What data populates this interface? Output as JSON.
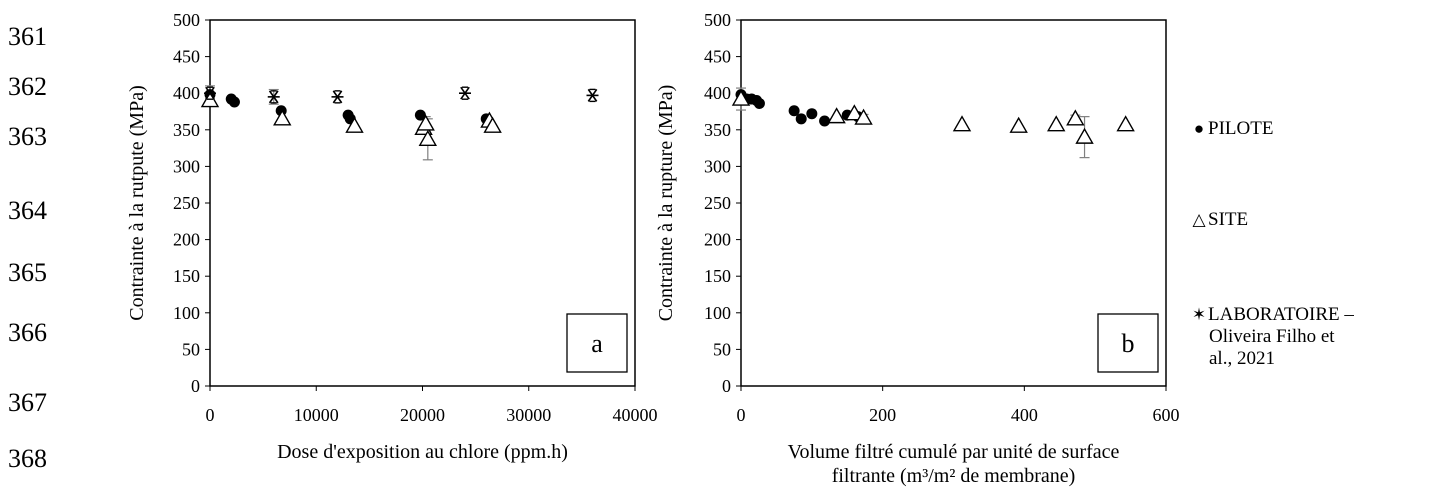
{
  "line_numbers": [
    "361",
    "362",
    "363",
    "364",
    "365",
    "366",
    "367",
    "368"
  ],
  "legend": {
    "pilote": "PILOTE",
    "site": "SITE",
    "labo_line1": "LABORATOIRE –",
    "labo_line2": "Oliveira Filho et",
    "labo_line3": "al., 2021"
  },
  "chart_data": [
    {
      "type": "scatter",
      "panel_label": "a",
      "xlabel": "Dose d'exposition au chlore (ppm.h)",
      "ylabel": "Contrainte à la rutpute (MPa)",
      "xlim": [
        0,
        40000
      ],
      "ylim": [
        0,
        500
      ],
      "xticks": [
        0,
        10000,
        20000,
        30000,
        40000
      ],
      "yticks": [
        0,
        50,
        100,
        150,
        200,
        250,
        300,
        350,
        400,
        450,
        500
      ],
      "grid": false,
      "series": [
        {
          "name": "PILOTE",
          "marker": "circle",
          "x": [
            0,
            2000,
            2300,
            6700,
            13000,
            13200,
            19800,
            26000
          ],
          "y": [
            398,
            392,
            388,
            376,
            370,
            365,
            370,
            365
          ]
        },
        {
          "name": "SITE",
          "marker": "triangle",
          "x": [
            0,
            6800,
            13600,
            20100,
            20300,
            20500,
            26300,
            26600
          ],
          "y": [
            390,
            365,
            355,
            352,
            358,
            337,
            362,
            355
          ],
          "err": [
            0,
            0,
            0,
            0,
            10,
            28,
            0,
            0
          ]
        },
        {
          "name": "LABORATOIRE – Oliveira Filho et al., 2021",
          "marker": "star",
          "x": [
            0,
            6000,
            12000,
            24000,
            36000
          ],
          "y": [
            400,
            395,
            395,
            400,
            397
          ],
          "err": [
            10,
            10,
            0,
            0,
            0
          ]
        }
      ]
    },
    {
      "type": "scatter",
      "panel_label": "b",
      "xlabel_line1": "Volume filtré cumulé par unité de surface",
      "xlabel_line2": "filtrante (m³/m² de membrane)",
      "ylabel": "Contrainte à la rupture (MPa)",
      "xlim": [
        0,
        600
      ],
      "ylim": [
        0,
        500
      ],
      "xticks": [
        0,
        200,
        400,
        600
      ],
      "yticks": [
        0,
        50,
        100,
        150,
        200,
        250,
        300,
        350,
        400,
        450,
        500
      ],
      "grid": false,
      "series": [
        {
          "name": "PILOTE",
          "marker": "circle",
          "x": [
            0,
            8,
            15,
            22,
            26,
            75,
            85,
            100,
            118,
            150,
            165
          ],
          "y": [
            398,
            392,
            392,
            390,
            386,
            376,
            365,
            372,
            362,
            370,
            368
          ]
        },
        {
          "name": "SITE",
          "marker": "triangle",
          "x": [
            0,
            135,
            160,
            173,
            312,
            392,
            445,
            472,
            485,
            543
          ],
          "y": [
            392,
            368,
            372,
            366,
            357,
            355,
            357,
            365,
            340,
            357
          ],
          "err": [
            15,
            0,
            0,
            5,
            0,
            0,
            0,
            5,
            28,
            0
          ]
        }
      ]
    }
  ]
}
